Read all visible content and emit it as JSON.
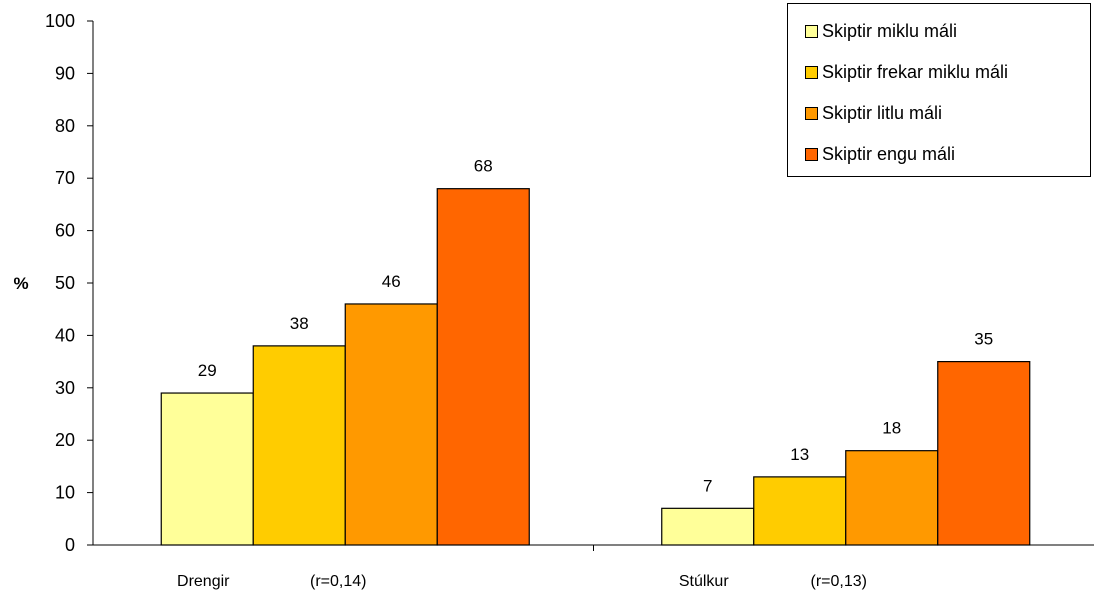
{
  "chart_data": {
    "type": "bar",
    "title": "",
    "ylabel": "%",
    "xlabel": "",
    "ylim": [
      0,
      100
    ],
    "yticks": [
      "0",
      "10",
      "20",
      "30",
      "40",
      "50",
      "60",
      "70",
      "80",
      "90",
      "100"
    ],
    "grid": false,
    "legend_position": "top-right",
    "categories": [
      "Drengir",
      "Stúlkur"
    ],
    "category_notes": [
      "(r=0,14)",
      "(r=0,13)"
    ],
    "series": [
      {
        "name": "Skiptir miklu máli",
        "color": "#FFFF99",
        "values": [
          29,
          7
        ]
      },
      {
        "name": "Skiptir frekar miklu máli",
        "color": "#FFCC00",
        "values": [
          38,
          13
        ]
      },
      {
        "name": "Skiptir litlu máli",
        "color": "#FF9900",
        "values": [
          46,
          18
        ]
      },
      {
        "name": "Skiptir engu máli",
        "color": "#FF6600",
        "values": [
          68,
          35
        ]
      }
    ],
    "data_labels": [
      [
        "29",
        "7"
      ],
      [
        "38",
        "13"
      ],
      [
        "46",
        "18"
      ],
      [
        "68",
        "35"
      ]
    ]
  }
}
